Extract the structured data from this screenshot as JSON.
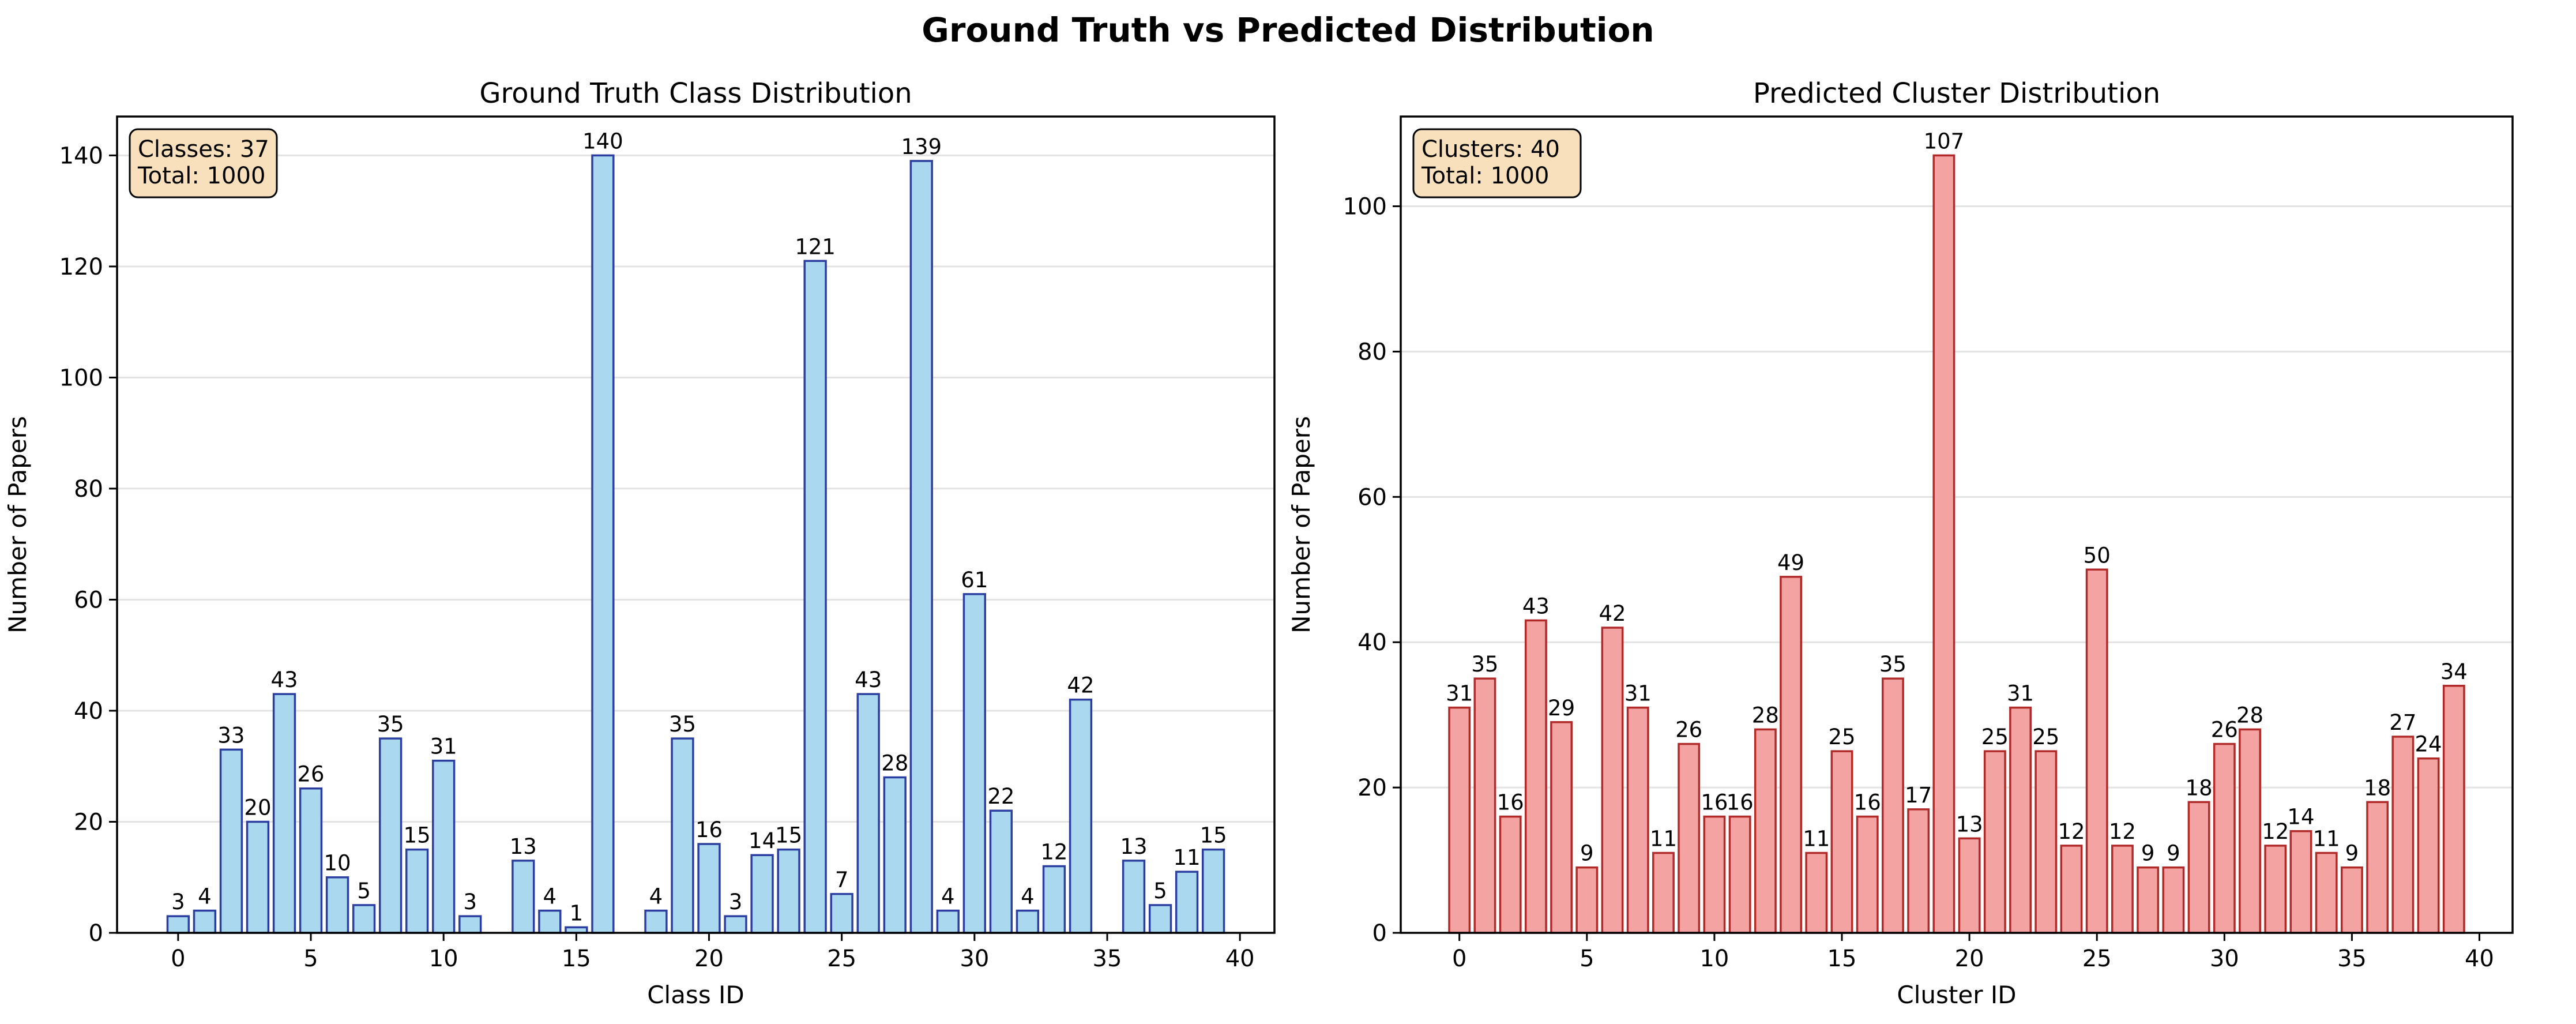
{
  "suptitle": "Ground Truth vs Predicted Distribution",
  "colors": {
    "gt_fill": "#aad8ef",
    "gt_edge": "#2c3fa0",
    "pred_fill": "#f4a3a3",
    "pred_edge": "#b02a2a",
    "info_box_fill": "#f7e0bb"
  },
  "chart_data": [
    {
      "type": "bar",
      "title": "Ground Truth Class Distribution",
      "xlabel": "Class ID",
      "ylabel": "Number of Papers",
      "xlim": [
        -2.3,
        41.3
      ],
      "ylim": [
        0,
        147
      ],
      "xticks": [
        0,
        5,
        10,
        15,
        20,
        25,
        30,
        35,
        40
      ],
      "yticks": [
        0,
        20,
        40,
        60,
        80,
        100,
        120,
        140
      ],
      "grid": "y",
      "info_box": [
        "Classes: 37",
        "Total: 1000"
      ],
      "info_box_placement": "top-left",
      "x": [
        0,
        1,
        2,
        3,
        4,
        5,
        6,
        7,
        8,
        9,
        10,
        11,
        13,
        14,
        15,
        16,
        18,
        19,
        20,
        21,
        22,
        23,
        24,
        25,
        26,
        27,
        28,
        29,
        30,
        31,
        32,
        33,
        34,
        36,
        37,
        38,
        39
      ],
      "values": [
        3,
        4,
        33,
        20,
        43,
        26,
        10,
        5,
        35,
        15,
        31,
        3,
        13,
        4,
        1,
        140,
        4,
        35,
        16,
        3,
        14,
        15,
        121,
        7,
        43,
        28,
        139,
        4,
        61,
        22,
        4,
        12,
        42,
        13,
        5,
        11,
        15
      ],
      "fill_color": "#aad8ef",
      "edge_color": "#2c3fa0"
    },
    {
      "type": "bar",
      "title": "Predicted Cluster Distribution",
      "xlabel": "Cluster ID",
      "ylabel": "Number of Papers",
      "xlim": [
        -2.3,
        41.3
      ],
      "ylim": [
        0,
        112.35
      ],
      "xticks": [
        0,
        5,
        10,
        15,
        20,
        25,
        30,
        35,
        40
      ],
      "yticks": [
        0,
        20,
        40,
        60,
        80,
        100
      ],
      "grid": "y",
      "info_box": [
        "Clusters: 40",
        "Total: 1000"
      ],
      "info_box_placement": "top-left",
      "x": [
        0,
        1,
        2,
        3,
        4,
        5,
        6,
        7,
        8,
        9,
        10,
        11,
        12,
        13,
        14,
        15,
        16,
        17,
        18,
        19,
        20,
        21,
        22,
        23,
        24,
        25,
        26,
        27,
        28,
        29,
        30,
        31,
        32,
        33,
        34,
        35,
        36,
        37,
        38,
        39
      ],
      "values": [
        31,
        35,
        16,
        43,
        29,
        9,
        42,
        31,
        11,
        26,
        16,
        16,
        28,
        49,
        11,
        25,
        16,
        35,
        17,
        107,
        13,
        25,
        31,
        25,
        12,
        50,
        12,
        9,
        9,
        18,
        26,
        28,
        12,
        14,
        11,
        9,
        18,
        27,
        24,
        34
      ],
      "fill_color": "#f4a3a3",
      "edge_color": "#b02a2a"
    }
  ]
}
